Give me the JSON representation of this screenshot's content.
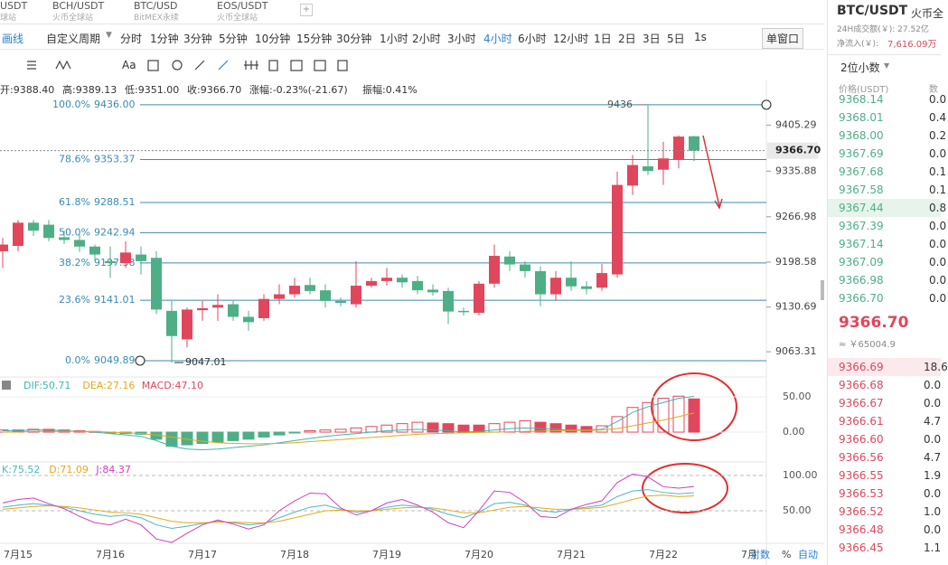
{
  "tabs": [
    {
      "pair": "USDT",
      "venue": "球站"
    },
    {
      "pair": "BCH/USDT",
      "venue": "火币全球站"
    },
    {
      "pair": "BTC/USD",
      "venue": "BitMEX永续"
    },
    {
      "pair": "EOS/USDT",
      "venue": "火币全球站"
    }
  ],
  "toolbar": {
    "draw": "画线",
    "custom": "自定义周期",
    "periods": [
      "分时",
      "1分钟",
      "3分钟",
      "5分钟",
      "10分钟",
      "15分钟",
      "30分钟",
      "1小时",
      "2小时",
      "3小时",
      "4小时",
      "6小时",
      "12小时",
      "1日",
      "2日",
      "3日",
      "5日",
      "1s"
    ],
    "active_index": 10,
    "window": "单窗口"
  },
  "drawing_tools": {
    "text_tool": "Aa"
  },
  "ohlc_info": [
    "开:9388.40",
    "高:9389.13",
    "低:9351.00",
    "收:9366.70",
    "涨幅:-0.23%(-21.67)",
    "振幅:0.41%"
  ],
  "chart_data": [
    {
      "type": "candlestick",
      "x": [
        null,
        "7月15",
        null,
        null,
        null,
        null,
        null,
        "7月16",
        null,
        null,
        null,
        null,
        null,
        "7月17",
        null,
        null,
        null,
        null,
        null,
        "7月18",
        null,
        null,
        null,
        null,
        null,
        "7月19",
        null,
        null,
        null,
        null,
        null,
        "7月20",
        null,
        null,
        null,
        null,
        null,
        "7月21",
        null,
        null,
        null,
        null,
        null,
        "7月22",
        null,
        null
      ],
      "open": [
        9215,
        9223,
        9258,
        9255,
        9236,
        9232,
        9222,
        9200,
        9197,
        9210,
        9205,
        9125,
        9082,
        9126,
        9130,
        9135,
        9116,
        9114,
        9143,
        9150,
        9164,
        9156,
        9140,
        9135,
        9163,
        9170,
        9175,
        9170,
        9157,
        9155,
        9125,
        9122,
        9166,
        9207,
        9195,
        9185,
        9150,
        9175,
        9162,
        9160,
        9180,
        9314,
        9343,
        9338,
        9354,
        9388.4
      ],
      "high": [
        9235,
        9262,
        9262,
        9262,
        9246,
        9240,
        9225,
        9222,
        9230,
        9222,
        9215,
        9140,
        9130,
        9140,
        9150,
        9140,
        9125,
        9150,
        9165,
        9175,
        9175,
        9165,
        9145,
        9200,
        9175,
        9190,
        9180,
        9178,
        9165,
        9160,
        9130,
        9170,
        9225,
        9215,
        9200,
        9192,
        9185,
        9200,
        9170,
        9196,
        9335,
        9360,
        9436,
        9380,
        9390,
        9389.13
      ],
      "low": [
        9190,
        9215,
        9238,
        9230,
        9226,
        9214,
        9200,
        9175,
        9190,
        9180,
        9120,
        9047.01,
        9070,
        9110,
        9110,
        9110,
        9095,
        9110,
        9135,
        9145,
        9150,
        9130,
        9132,
        9130,
        9160,
        9163,
        9160,
        9150,
        9148,
        9105,
        9118,
        9118,
        9160,
        9185,
        9175,
        9132,
        9140,
        9155,
        9150,
        9155,
        9175,
        9300,
        9330,
        9315,
        9340,
        9351.0
      ],
      "close": [
        9225,
        9258,
        9246,
        9235,
        9232,
        9222,
        9210,
        9197,
        9213,
        9200,
        9127,
        9087,
        9127,
        9129,
        9134,
        9116,
        9108,
        9143,
        9150,
        9163,
        9155,
        9140,
        9137,
        9163,
        9170,
        9175,
        9168,
        9156,
        9153,
        9124,
        9123,
        9166,
        9208,
        9195,
        9185,
        9150,
        9175,
        9162,
        9158,
        9182,
        9315,
        9345,
        9336,
        9355,
        9388,
        9366.7
      ],
      "up_color": "#e0475c",
      "down_color": "#4eaf86",
      "ylim": [
        9028,
        9474
      ],
      "yticks": [
        9405.29,
        9335.88,
        9266.98,
        9198.58,
        9130.69,
        9063.31
      ],
      "last_price": {
        "value": 9366.7,
        "label": "9366.70"
      },
      "high_label": 9436,
      "low_label": 9047.01,
      "fib_levels": [
        {
          "ratio": "100.0%",
          "price": {
            "value": 9436,
            "label": "9436.00"
          }
        },
        {
          "ratio": "78.6%",
          "price": 9353.37
        },
        {
          "ratio": "61.8%",
          "price": 9288.51
        },
        {
          "ratio": "50.0%",
          "price": 9242.94
        },
        {
          "ratio": "38.2%",
          "price": 9197.38
        },
        {
          "ratio": "23.6%",
          "price": 9141.01
        },
        {
          "ratio": "0.0%",
          "price": 9049.89
        }
      ],
      "fib_color": "#3a8bb4"
    },
    {
      "type": "macd",
      "ylim": [
        -41,
        74.4
      ],
      "yticks": [
        {
          "value": 50,
          "label": "50.00"
        },
        {
          "value": 0,
          "label": "0.00"
        }
      ],
      "histogram": {
        "name": "MACD:47.10",
        "color": "#e0475c",
        "neg_color": "#4eaf86",
        "values": [
          3,
          3,
          4,
          4,
          3,
          2,
          1,
          -1,
          -2,
          -3,
          -10,
          -20,
          -18,
          -16,
          -14,
          -12,
          -10,
          -7,
          -4,
          -1,
          2,
          3,
          4,
          6,
          8,
          10,
          12,
          14,
          13,
          12,
          10,
          10,
          12,
          14,
          16,
          14,
          12,
          10,
          8,
          9,
          22,
          35,
          42,
          48,
          51,
          47.1
        ]
      },
      "series": [
        {
          "name": "DIF:50.71",
          "color": "#3cb8b0",
          "values": [
            2,
            2,
            3,
            3,
            2,
            1,
            0,
            -2,
            -4,
            -6,
            -12,
            -20,
            -24,
            -25,
            -24,
            -22,
            -20,
            -18,
            -15,
            -12,
            -9,
            -6,
            -4,
            -2,
            0,
            2,
            3,
            4,
            3,
            2,
            0,
            1,
            3,
            5,
            6,
            5,
            4,
            3,
            3,
            4,
            15,
            28,
            36,
            42,
            48,
            50.71
          ]
        },
        {
          "name": "DEA:27.16",
          "color": "#e6a817",
          "values": [
            0,
            0,
            1,
            1,
            1,
            1,
            1,
            0,
            -1,
            -2,
            -4,
            -7,
            -10,
            -13,
            -15,
            -16,
            -16.5,
            -16.5,
            -16,
            -15,
            -13.5,
            -12,
            -10.5,
            -9,
            -7.5,
            -6,
            -4.5,
            -3,
            -2,
            -1.5,
            -1,
            -0.5,
            0,
            0.5,
            1,
            1.5,
            2,
            2.3,
            2.5,
            3,
            5,
            9,
            13,
            17,
            22,
            27.16
          ]
        }
      ]
    },
    {
      "type": "kdj",
      "ylim": [
        5.1,
        117.9
      ],
      "yticks": [
        {
          "value": 100,
          "label": "100.00"
        },
        {
          "value": 50,
          "label": "50.00"
        }
      ],
      "series": [
        {
          "name": "K:75.52",
          "color": "#4db6c4",
          "values": [
            55,
            58,
            60,
            58,
            55,
            50,
            45,
            42,
            44,
            40,
            30,
            25,
            28,
            32,
            35,
            33,
            30,
            32,
            40,
            48,
            55,
            58,
            52,
            48,
            50,
            55,
            58,
            56,
            52,
            45,
            40,
            48,
            60,
            62,
            58,
            50,
            48,
            52,
            55,
            58,
            70,
            78,
            80,
            76,
            74,
            75.52
          ]
        },
        {
          "name": "D:71.09",
          "color": "#e6a817",
          "values": [
            52,
            54,
            56,
            57,
            56,
            54,
            51,
            48,
            47,
            45,
            40,
            35,
            33,
            33,
            34,
            34,
            33,
            33,
            35,
            40,
            45,
            50,
            51,
            50,
            50,
            52,
            54,
            55,
            54,
            51,
            47,
            47,
            51,
            55,
            56,
            54,
            52,
            52,
            53,
            55,
            60,
            66,
            71,
            72,
            70,
            71.09
          ]
        },
        {
          "name": "J:84.37",
          "color": "#d040c0",
          "values": [
            61,
            66,
            68,
            60,
            53,
            42,
            33,
            30,
            38,
            30,
            10,
            5,
            18,
            30,
            37,
            31,
            24,
            30,
            50,
            64,
            75,
            74,
            54,
            44,
            50,
            61,
            66,
            58,
            48,
            33,
            26,
            50,
            78,
            76,
            62,
            42,
            40,
            52,
            59,
            64,
            90,
            102,
            98,
            84,
            82,
            84.37
          ]
        }
      ]
    }
  ],
  "bottom_bar": {
    "cut_label": "7月",
    "log": "对数",
    "percent": "%",
    "auto": "自动"
  },
  "side": {
    "pair": "BTC/USDT",
    "venue": "火币全",
    "turnover": "24H成交额(￥): 27.52亿",
    "inflow_label": "净流入(￥): ",
    "inflow": "7,616.09万",
    "decimals": "2位小数",
    "price_header": "价格(USDT)",
    "amount_header": "数",
    "asks": [
      [
        "9368.14",
        "0.0"
      ],
      [
        "9368.01",
        "0.4"
      ],
      [
        "9368.00",
        "0.2"
      ],
      [
        "9367.69",
        "0.0"
      ],
      [
        "9367.68",
        "0.1"
      ],
      [
        "9367.58",
        "0.1"
      ],
      [
        "9367.44",
        "0.8"
      ],
      [
        "9367.39",
        "0.0"
      ],
      [
        "9367.14",
        "0.0"
      ],
      [
        "9367.09",
        "0.0"
      ],
      [
        "9366.98",
        "0.0"
      ],
      [
        "9366.70",
        "0.0"
      ]
    ],
    "last": "9366.70",
    "cny": "≈ ￥65004.9",
    "bids": [
      [
        "9366.69",
        "18.6"
      ],
      [
        "9366.68",
        "0.0"
      ],
      [
        "9366.67",
        "0.0"
      ],
      [
        "9366.61",
        "4.7"
      ],
      [
        "9366.60",
        "0.0"
      ],
      [
        "9366.56",
        "4.7"
      ],
      [
        "9366.55",
        "1.9"
      ],
      [
        "9366.53",
        "0.0"
      ],
      [
        "9366.52",
        "1.0"
      ],
      [
        "9366.48",
        "0.0"
      ],
      [
        "9366.45",
        "1.1"
      ]
    ]
  }
}
